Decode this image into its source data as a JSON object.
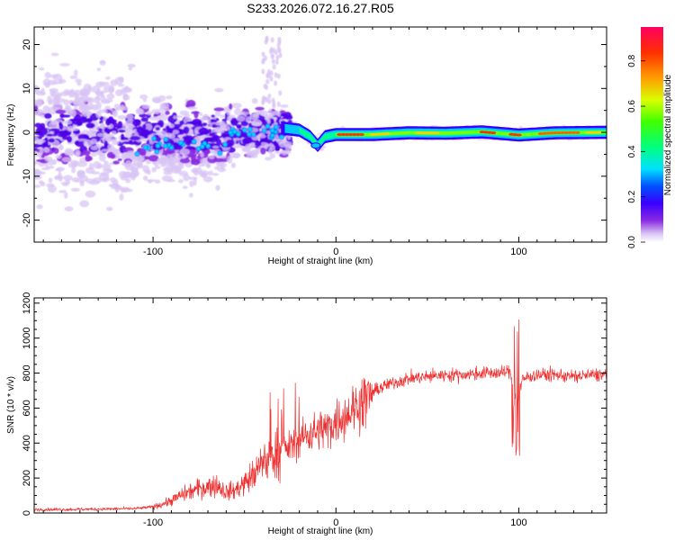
{
  "title": "S233.2026.072.16.27.R05",
  "chart_data": [
    {
      "type": "heatmap",
      "title": "S233.2026.072.16.27.R05",
      "xlabel": "Height of straight line (km)",
      "ylabel": "Frequency (Hz)",
      "xlim": [
        -165,
        148
      ],
      "ylim": [
        -25,
        24
      ],
      "x_ticks": [
        -100,
        0,
        100
      ],
      "y_ticks": [
        -20,
        -10,
        0,
        10,
        20
      ],
      "colorbar": {
        "label": "Normalized spectral amplitude",
        "range": [
          0,
          0.95
        ],
        "ticks": [
          0.0,
          0.2,
          0.4,
          0.6,
          0.8
        ],
        "colors": [
          "#ffffff",
          "#d8c4f4",
          "#8a2be2",
          "#3a00ff",
          "#0050ff",
          "#00e0ff",
          "#00ff80",
          "#40ff00",
          "#d8ff00",
          "#ffa000",
          "#ff3000",
          "#ff0060"
        ]
      },
      "ridge": [
        {
          "x": -30,
          "y": 1.0
        },
        {
          "x": -20,
          "y": 0.5
        },
        {
          "x": -14,
          "y": -1.0
        },
        {
          "x": -10,
          "y": -3.0
        },
        {
          "x": -6,
          "y": -1.0
        },
        {
          "x": 0,
          "y": -0.5
        },
        {
          "x": 20,
          "y": -0.5
        },
        {
          "x": 40,
          "y": -0.1
        },
        {
          "x": 60,
          "y": -0.2
        },
        {
          "x": 80,
          "y": 0.1
        },
        {
          "x": 100,
          "y": -0.6
        },
        {
          "x": 120,
          "y": -0.1
        },
        {
          "x": 148,
          "y": 0.0
        }
      ]
    },
    {
      "type": "line",
      "xlabel": "Height of straight line (km)",
      "ylabel": "SNR (10 * v/v)",
      "xlim": [
        -165,
        148
      ],
      "ylim": [
        0,
        1230
      ],
      "x_ticks": [
        -100,
        0,
        100
      ],
      "y_ticks": [
        0,
        200,
        400,
        600,
        800,
        1000,
        1200
      ],
      "color": "#ee3030",
      "series": [
        {
          "x": [
            -165,
            -150,
            -130,
            -110,
            -100,
            -95,
            -90,
            -85,
            -80,
            -75,
            -70,
            -65,
            -60,
            -55,
            -50,
            -45,
            -40,
            -35,
            -30,
            -25,
            -20,
            -15,
            -10,
            -5,
            0,
            5,
            10,
            15,
            20,
            25,
            30,
            40,
            50,
            60,
            70,
            80,
            90,
            95,
            98,
            100,
            102,
            105,
            110,
            120,
            130,
            140,
            148
          ],
          "y": [
            20,
            20,
            22,
            25,
            35,
            50,
            70,
            100,
            120,
            140,
            150,
            160,
            120,
            130,
            170,
            220,
            280,
            330,
            360,
            380,
            420,
            450,
            470,
            490,
            520,
            560,
            600,
            640,
            690,
            720,
            740,
            770,
            780,
            790,
            790,
            800,
            800,
            810,
            700,
            680,
            760,
            780,
            790,
            790,
            780,
            790,
            790
          ]
        }
      ]
    }
  ]
}
